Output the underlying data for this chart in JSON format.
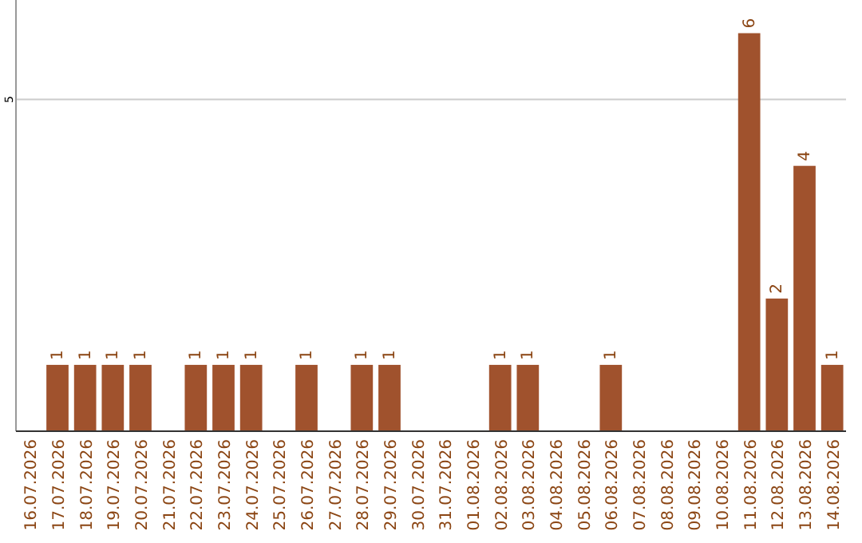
{
  "chart_data": {
    "type": "bar",
    "categories": [
      "16.07.2026",
      "17.07.2026",
      "18.07.2026",
      "19.07.2026",
      "20.07.2026",
      "21.07.2026",
      "22.07.2026",
      "23.07.2026",
      "24.07.2026",
      "25.07.2026",
      "26.07.2026",
      "27.07.2026",
      "28.07.2026",
      "29.07.2026",
      "30.07.2026",
      "31.07.2026",
      "01.08.2026",
      "02.08.2026",
      "03.08.2026",
      "04.08.2026",
      "05.08.2026",
      "06.08.2026",
      "07.08.2026",
      "08.08.2026",
      "09.08.2026",
      "10.08.2026",
      "11.08.2026",
      "12.08.2026",
      "13.08.2026",
      "14.08.2026"
    ],
    "values": [
      0,
      1,
      1,
      1,
      1,
      0,
      1,
      1,
      1,
      0,
      1,
      0,
      1,
      1,
      0,
      0,
      0,
      1,
      1,
      0,
      0,
      1,
      0,
      0,
      0,
      0,
      6,
      2,
      4,
      1
    ],
    "value_labels": [
      null,
      "1",
      "1",
      "1",
      "1",
      null,
      "1",
      "1",
      "1",
      null,
      "1",
      null,
      "1",
      "1",
      null,
      null,
      null,
      "1",
      "1",
      null,
      null,
      "1",
      null,
      null,
      null,
      null,
      "6",
      "2",
      "4",
      "1"
    ],
    "color": "#a0522d",
    "ylim": [
      0,
      6.5
    ],
    "yticks": [
      5
    ],
    "grid": "y"
  }
}
